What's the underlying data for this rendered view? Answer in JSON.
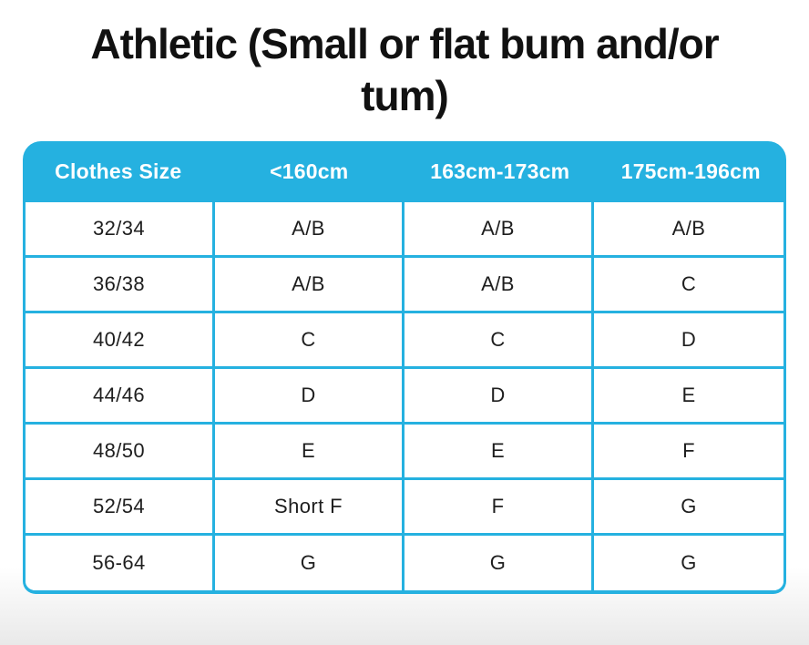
{
  "title": {
    "line1": "Athletic (Small or flat bum and/or",
    "line2": "tum)"
  },
  "colors": {
    "accent_cyan": "#25b1e0",
    "header_text": "#ffffff",
    "body_text": "#1e1e1e",
    "title_text": "#111111",
    "bottom_fade": "#e9e9e9"
  },
  "chart_data": {
    "type": "table",
    "title": "Athletic (Small or flat bum and/or tum)",
    "columns": [
      "Clothes Size",
      "<160cm",
      "163cm-173cm",
      "175cm-196cm"
    ],
    "rows": [
      [
        "32/34",
        "A/B",
        "A/B",
        "A/B"
      ],
      [
        "36/38",
        "A/B",
        "A/B",
        "C"
      ],
      [
        "40/42",
        "C",
        "C",
        "D"
      ],
      [
        "44/46",
        "D",
        "D",
        "E"
      ],
      [
        "48/50",
        "E",
        "E",
        "F"
      ],
      [
        "52/54",
        "Short F",
        "F",
        "G"
      ],
      [
        "56-64",
        "G",
        "G",
        "G"
      ]
    ],
    "layout": {
      "header_background": "#25b1e0",
      "grid": true,
      "rounded_corners": true
    }
  }
}
